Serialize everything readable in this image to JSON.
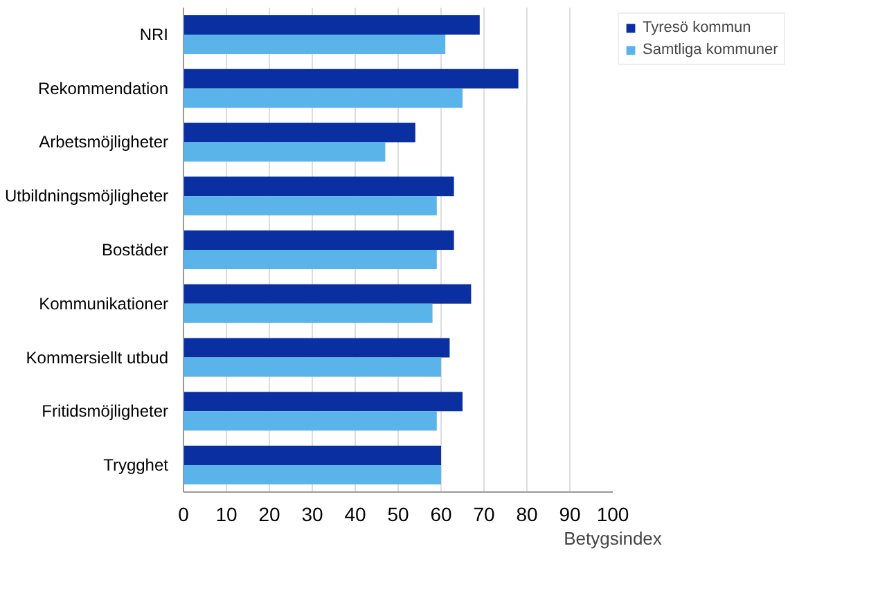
{
  "chart_data": {
    "type": "bar",
    "orientation": "horizontal",
    "xlabel": "Betygsindex",
    "categories": [
      "NRI",
      "Rekommendation",
      "Arbetsmöjligheter",
      "Utbildningsmöjligheter",
      "Bostäder",
      "Kommunikationer",
      "Kommersiellt utbud",
      "Fritidsmöjligheter",
      "Trygghet"
    ],
    "series": [
      {
        "name": "Tyresö kommun",
        "color": "#0a2fa0",
        "values": [
          69,
          78,
          54,
          63,
          63,
          67,
          62,
          65,
          60
        ]
      },
      {
        "name": "Samtliga kommuner",
        "color": "#5ab4ea",
        "values": [
          61,
          65,
          47,
          59,
          59,
          58,
          60,
          59,
          60
        ]
      }
    ],
    "xlim": [
      0,
      100
    ],
    "xticks": [
      0,
      10,
      20,
      30,
      40,
      50,
      60,
      70,
      80,
      90,
      100
    ],
    "grid": "x",
    "legend": "top right"
  }
}
